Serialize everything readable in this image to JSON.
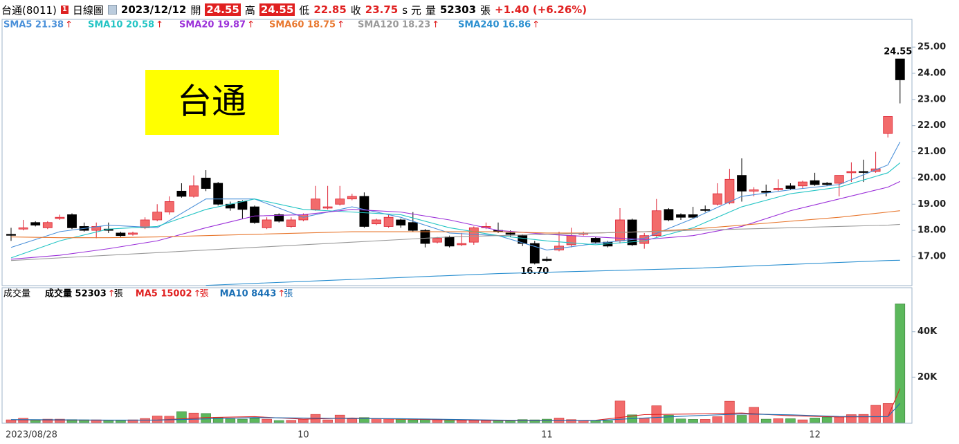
{
  "header": {
    "name": "台通(8011)",
    "period": "日線圖",
    "date": "2023/12/12",
    "open_label": "開",
    "open": "24.55",
    "high_label": "高",
    "high": "24.55",
    "low_label": "低",
    "low": "22.85",
    "close_label": "收",
    "close": "23.75",
    "currency": "s 元",
    "volume_label": "量",
    "volume": "52303",
    "unit": "張",
    "change": "+1.40 (+6.26%)"
  },
  "chart_data": [
    {
      "type": "candlestick",
      "title": "台通",
      "ylim": [
        15.89,
        26.06
      ],
      "yticks": [
        {
          "value": 17,
          "label": "17.00"
        },
        {
          "value": 18,
          "label": "18.00"
        },
        {
          "value": 19,
          "label": "19.00"
        },
        {
          "value": 20,
          "label": "20.00"
        },
        {
          "value": 21,
          "label": "21.00"
        },
        {
          "value": 22,
          "label": "22.00"
        },
        {
          "value": 23,
          "label": "23.00"
        },
        {
          "value": 24,
          "label": "24.00"
        },
        {
          "value": 25,
          "label": "25.00"
        }
      ],
      "up_color": "#f26b6b",
      "down_color": "#000000",
      "open": [
        17.85,
        18.05,
        18.3,
        18.1,
        18.45,
        18.6,
        18.15,
        18.0,
        18.05,
        17.9,
        17.85,
        18.1,
        18.4,
        18.7,
        19.5,
        19.3,
        20.0,
        19.8,
        19.0,
        19.1,
        18.9,
        18.1,
        18.6,
        18.15,
        18.4,
        18.8,
        18.85,
        19.0,
        19.2,
        19.3,
        18.25,
        18.15,
        18.4,
        18.3,
        18.0,
        17.55,
        17.75,
        17.45,
        17.55,
        18.1,
        18.0,
        17.9,
        17.8,
        17.5,
        16.9,
        17.25,
        17.45,
        17.85,
        17.7,
        17.55,
        17.6,
        18.4,
        17.5,
        17.8,
        18.8,
        18.6,
        18.6,
        18.8,
        19.0,
        19.05,
        20.1,
        19.5,
        19.5,
        19.55,
        19.7,
        19.7,
        19.9,
        19.8,
        19.8,
        20.2,
        20.25,
        20.25,
        21.7,
        24.55
      ],
      "high": [
        18.1,
        18.4,
        18.35,
        18.35,
        18.6,
        18.65,
        18.3,
        18.3,
        18.3,
        17.95,
        17.95,
        18.5,
        19.0,
        19.3,
        19.8,
        20.1,
        20.3,
        19.85,
        19.1,
        19.15,
        18.95,
        18.5,
        18.65,
        18.5,
        18.65,
        19.7,
        19.7,
        19.7,
        19.4,
        19.45,
        18.45,
        18.6,
        18.45,
        18.7,
        18.05,
        17.75,
        17.8,
        17.9,
        18.15,
        18.3,
        18.3,
        18.0,
        17.85,
        17.6,
        17.0,
        17.95,
        18.1,
        17.95,
        17.75,
        17.6,
        18.85,
        18.45,
        17.9,
        19.2,
        18.85,
        18.65,
        18.9,
        18.95,
        19.8,
        20.35,
        20.75,
        19.65,
        19.75,
        19.95,
        19.8,
        19.9,
        20.2,
        19.85,
        20.1,
        20.6,
        20.7,
        21.0,
        22.35,
        24.55
      ],
      "low": [
        17.6,
        18.0,
        18.15,
        18.05,
        18.4,
        18.05,
        17.95,
        17.7,
        17.9,
        17.75,
        17.8,
        18.05,
        18.35,
        18.6,
        19.25,
        19.25,
        19.5,
        18.95,
        18.75,
        18.45,
        18.25,
        18.05,
        18.3,
        18.1,
        18.35,
        18.75,
        18.8,
        18.95,
        19.15,
        18.1,
        18.2,
        18.1,
        18.1,
        17.95,
        17.35,
        17.5,
        17.35,
        17.4,
        17.45,
        18.05,
        17.9,
        17.75,
        17.4,
        16.7,
        16.8,
        17.2,
        17.35,
        17.8,
        17.5,
        17.35,
        17.5,
        17.4,
        17.3,
        17.75,
        18.35,
        18.4,
        18.45,
        18.7,
        18.95,
        19.0,
        19.1,
        19.3,
        19.3,
        19.5,
        19.55,
        19.6,
        19.7,
        19.7,
        19.3,
        19.85,
        19.85,
        20.2,
        21.55,
        22.85
      ],
      "close": [
        17.85,
        18.1,
        18.2,
        18.3,
        18.5,
        18.1,
        18.0,
        18.15,
        18.0,
        17.8,
        17.9,
        18.4,
        18.7,
        19.1,
        19.3,
        19.7,
        19.6,
        19.0,
        18.85,
        18.8,
        18.3,
        18.4,
        18.35,
        18.4,
        18.6,
        19.2,
        18.9,
        19.2,
        19.3,
        18.15,
        18.4,
        18.5,
        18.2,
        18.0,
        17.5,
        17.7,
        17.4,
        17.5,
        18.1,
        18.15,
        17.95,
        17.85,
        17.5,
        16.75,
        16.85,
        17.4,
        17.8,
        17.9,
        17.55,
        17.4,
        18.4,
        17.45,
        17.8,
        18.75,
        18.4,
        18.5,
        18.5,
        18.8,
        19.4,
        19.95,
        19.5,
        19.55,
        19.45,
        19.6,
        19.6,
        19.85,
        19.75,
        19.75,
        20.1,
        20.25,
        20.25,
        20.35,
        22.35,
        23.75
      ],
      "annotations": [
        {
          "text": "24.55"
        },
        {
          "text": "16.70"
        }
      ],
      "series": [
        {
          "name": "SMA5 21.38",
          "color": "#4a90d9",
          "x": [
            0,
            4,
            8,
            12,
            16,
            20,
            24,
            28,
            32,
            36,
            40,
            44,
            48,
            52,
            56,
            60,
            64,
            68,
            72,
            73
          ],
          "values": [
            17.35,
            17.95,
            18.2,
            18.1,
            19.2,
            19.2,
            18.5,
            18.9,
            18.5,
            17.9,
            17.8,
            17.25,
            17.5,
            17.7,
            18.45,
            19.3,
            19.55,
            19.75,
            20.5,
            21.38
          ]
        },
        {
          "name": "SMA10 20.58",
          "color": "#22c4c4",
          "x": [
            0,
            4,
            8,
            12,
            16,
            20,
            24,
            28,
            32,
            36,
            40,
            44,
            48,
            52,
            56,
            60,
            64,
            68,
            72,
            73
          ],
          "values": [
            16.95,
            17.6,
            18.05,
            18.15,
            18.8,
            19.2,
            18.8,
            18.7,
            18.6,
            18.1,
            17.8,
            17.6,
            17.45,
            17.6,
            18.1,
            18.9,
            19.4,
            19.65,
            20.2,
            20.58
          ]
        },
        {
          "name": "SMA20 19.87",
          "color": "#9b30d9",
          "x": [
            0,
            4,
            8,
            12,
            16,
            20,
            24,
            28,
            32,
            36,
            40,
            44,
            48,
            52,
            56,
            60,
            64,
            68,
            72,
            73
          ],
          "values": [
            16.9,
            17.05,
            17.3,
            17.6,
            18.1,
            18.55,
            18.6,
            18.8,
            18.7,
            18.4,
            18.0,
            17.85,
            17.75,
            17.65,
            17.8,
            18.15,
            18.75,
            19.2,
            19.65,
            19.87
          ]
        },
        {
          "name": "SMA60 18.75",
          "color": "#e8772e",
          "x": [
            0,
            4,
            8,
            12,
            16,
            20,
            24,
            28,
            32,
            36,
            40,
            44,
            48,
            52,
            56,
            60,
            64,
            68,
            72,
            73
          ],
          "values": [
            17.75,
            17.72,
            17.72,
            17.75,
            17.8,
            17.85,
            17.9,
            17.95,
            17.95,
            17.95,
            17.95,
            17.9,
            17.9,
            17.95,
            18.05,
            18.2,
            18.35,
            18.5,
            18.7,
            18.75
          ]
        },
        {
          "name": "SMA120 18.23",
          "color": "#999999",
          "x": [
            0,
            4,
            8,
            12,
            16,
            20,
            24,
            28,
            32,
            36,
            40,
            44,
            48,
            52,
            56,
            60,
            64,
            68,
            72,
            73
          ],
          "values": [
            16.85,
            16.95,
            17.05,
            17.15,
            17.25,
            17.35,
            17.45,
            17.55,
            17.65,
            17.75,
            17.8,
            17.85,
            17.9,
            17.95,
            18.0,
            18.05,
            18.1,
            18.15,
            18.2,
            18.23
          ]
        },
        {
          "name": "SMA240 16.86",
          "color": "#2a8fd0",
          "x": [
            16,
            24,
            32,
            40,
            48,
            56,
            64,
            72,
            73
          ],
          "values": [
            15.9,
            16.05,
            16.2,
            16.35,
            16.45,
            16.55,
            16.7,
            16.85,
            16.86
          ]
        }
      ]
    },
    {
      "type": "bar",
      "title": "成交量",
      "legend": "成交量 52303",
      "unit": "張",
      "ylim": [
        0,
        59400
      ],
      "yticks": [
        {
          "value": 20000,
          "label": "20K"
        },
        {
          "value": 40000,
          "label": "40K"
        }
      ],
      "categories": [
        "2023/08/28",
        null,
        null,
        null,
        null,
        null,
        null,
        null,
        null,
        null,
        null,
        null,
        null,
        null,
        null,
        null,
        null,
        null,
        null,
        null,
        null,
        null,
        null,
        null,
        "10",
        null,
        null,
        null,
        null,
        null,
        null,
        null,
        null,
        null,
        null,
        null,
        null,
        null,
        null,
        null,
        null,
        null,
        null,
        null,
        "11",
        null,
        null,
        null,
        null,
        null,
        null,
        null,
        null,
        null,
        null,
        null,
        null,
        null,
        null,
        null,
        null,
        null,
        null,
        null,
        null,
        null,
        "12",
        null,
        null,
        null,
        null,
        null,
        null,
        null
      ],
      "up_color": "#f26b6b",
      "down_color": "#5cb85c",
      "values": [
        1200,
        1900,
        1300,
        1500,
        1500,
        1300,
        1200,
        1200,
        1100,
        1100,
        1200,
        1800,
        2900,
        2800,
        4800,
        4200,
        4000,
        2200,
        1600,
        1500,
        1900,
        1500,
        900,
        1000,
        1500,
        3600,
        1200,
        3300,
        1700,
        2200,
        1700,
        1600,
        1500,
        1200,
        1600,
        1200,
        1400,
        900,
        900,
        800,
        1100,
        900,
        1300,
        1200,
        1500,
        2000,
        1300,
        900,
        900,
        800,
        9500,
        3400,
        2000,
        7400,
        3300,
        1600,
        1400,
        1400,
        2600,
        9400,
        3200,
        6700,
        1500,
        1700,
        1700,
        1200,
        2000,
        2400,
        2400,
        3500,
        3600,
        7600,
        8400,
        52303
      ],
      "series": [
        {
          "name": "MA5 15002",
          "color": "#e02020",
          "x": [
            0,
            4,
            8,
            12,
            16,
            20,
            24,
            28,
            32,
            36,
            40,
            44,
            48,
            52,
            56,
            60,
            64,
            68,
            72,
            73
          ],
          "values": [
            1200,
            1100,
            1000,
            1100,
            2200,
            2600,
            1500,
            2000,
            1500,
            1200,
            900,
            800,
            1000,
            3500,
            3800,
            4200,
            3000,
            2500,
            2600,
            15002
          ]
        },
        {
          "name": "MA10 8443",
          "color": "#1a6fb5",
          "x": [
            0,
            4,
            8,
            12,
            16,
            20,
            24,
            28,
            32,
            36,
            40,
            44,
            48,
            52,
            56,
            60,
            64,
            68,
            72,
            73
          ],
          "values": [
            1300,
            1200,
            1100,
            1100,
            1600,
            2200,
            2000,
            1800,
            1700,
            1400,
            1100,
            900,
            900,
            2000,
            3000,
            3800,
            3400,
            2700,
            2600,
            8443
          ]
        }
      ]
    }
  ]
}
